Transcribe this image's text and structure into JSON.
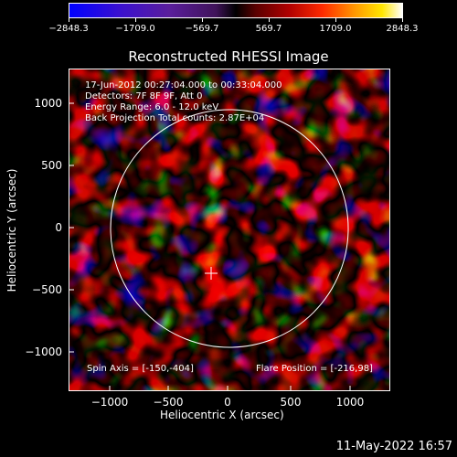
{
  "colorbar": {
    "labels": [
      "−2848.3",
      "−1709.0",
      "−569.7",
      "569.7",
      "1709.0",
      "2848.3"
    ]
  },
  "title": "Reconstructed RHESSI Image",
  "info": {
    "line1": "17-Jun-2012 00:27:04.000 to 00:33:04.000",
    "line2": "Detectors: 7F 8F 9F, Att 0",
    "line3": "Energy Range: 6.0 - 12.0 keV",
    "line4": "Back Projection    Total counts: 2.87E+04"
  },
  "footer": {
    "spin_axis": "Spin Axis = [-150,-404]",
    "flare_position": "Flare Position = [-216,98]"
  },
  "axes": {
    "xlabel": "Heliocentric X (arcsec)",
    "ylabel": "Heliocentric Y (arcsec)",
    "xticks": [
      "−1000",
      "−500",
      "0",
      "500",
      "1000"
    ],
    "yticks": [
      "1000",
      "500",
      "0",
      "−500",
      "−1000"
    ]
  },
  "timestamp": "11-May-2022 16:57"
}
